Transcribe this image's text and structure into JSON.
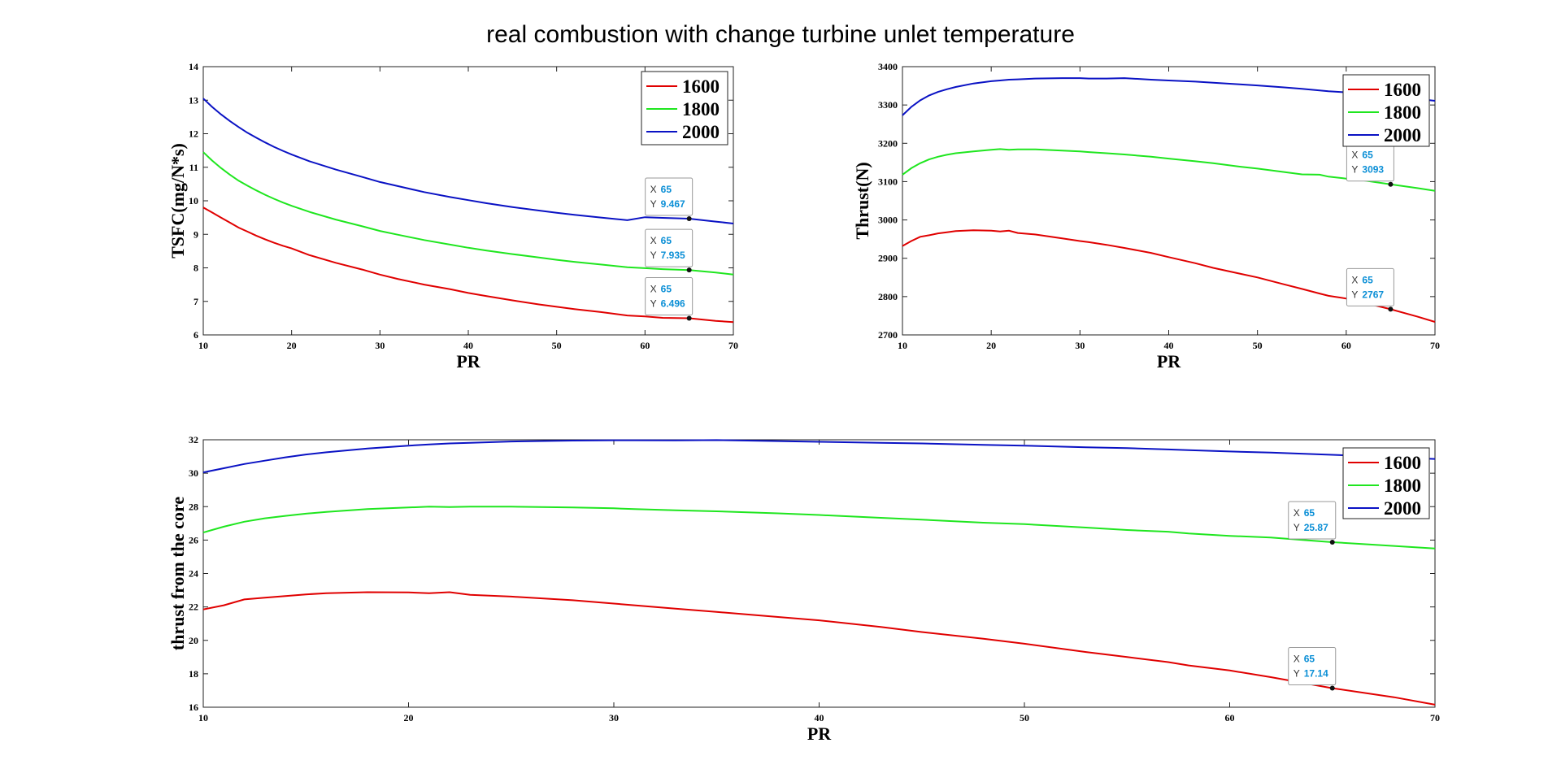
{
  "title": "real combustion with change turbine unlet temperature",
  "colors": {
    "1600": "#e00000",
    "1800": "#1fe61f",
    "2000": "#0a12c4"
  },
  "chart_data": [
    {
      "type": "line",
      "title": "",
      "xlabel": "PR",
      "ylabel": "TSFC(mg/N*s)",
      "xlim": [
        10,
        70
      ],
      "ylim": [
        6,
        14
      ],
      "xticks": [
        10,
        20,
        30,
        40,
        50,
        60,
        70
      ],
      "yticks": [
        6,
        7,
        8,
        9,
        10,
        11,
        12,
        13,
        14
      ],
      "legend_position": "top-right",
      "x": [
        10,
        11,
        12,
        13,
        14,
        15,
        16,
        17,
        18,
        19,
        20,
        22,
        25,
        28,
        30,
        32,
        35,
        38,
        40,
        42,
        45,
        48,
        50,
        52,
        55,
        58,
        60,
        62,
        65,
        68,
        70
      ],
      "series": [
        {
          "name": "1600",
          "values": [
            9.8,
            9.65,
            9.5,
            9.35,
            9.2,
            9.08,
            8.96,
            8.85,
            8.75,
            8.66,
            8.58,
            8.38,
            8.15,
            7.95,
            7.8,
            7.67,
            7.5,
            7.36,
            7.25,
            7.16,
            7.03,
            6.91,
            6.84,
            6.77,
            6.68,
            6.58,
            6.55,
            6.51,
            6.496,
            6.42,
            6.38
          ]
        },
        {
          "name": "1800",
          "values": [
            11.45,
            11.2,
            10.98,
            10.78,
            10.6,
            10.45,
            10.31,
            10.18,
            10.06,
            9.95,
            9.85,
            9.67,
            9.44,
            9.24,
            9.1,
            8.99,
            8.83,
            8.69,
            8.6,
            8.52,
            8.41,
            8.31,
            8.24,
            8.18,
            8.1,
            8.02,
            7.99,
            7.96,
            7.935,
            7.86,
            7.8
          ]
        },
        {
          "name": "2000",
          "values": [
            13.05,
            12.8,
            12.58,
            12.38,
            12.2,
            12.03,
            11.88,
            11.74,
            11.61,
            11.49,
            11.38,
            11.18,
            10.93,
            10.71,
            10.56,
            10.44,
            10.26,
            10.11,
            10.02,
            9.93,
            9.81,
            9.71,
            9.64,
            9.58,
            9.5,
            9.42,
            9.51,
            9.49,
            9.467,
            9.38,
            9.32
          ]
        }
      ],
      "datatips": [
        {
          "x": "65",
          "y": "9.467",
          "series": "2000",
          "xv": 65,
          "yv": 9.467
        },
        {
          "x": "65",
          "y": "7.935",
          "series": "1800",
          "xv": 65,
          "yv": 7.935
        },
        {
          "x": "65",
          "y": "6.496",
          "series": "1600",
          "xv": 65,
          "yv": 6.496
        }
      ]
    },
    {
      "type": "line",
      "title": "",
      "xlabel": "PR",
      "ylabel": "Thrust(N)",
      "xlim": [
        10,
        70
      ],
      "ylim": [
        2700,
        3400
      ],
      "xticks": [
        10,
        20,
        30,
        40,
        50,
        60,
        70
      ],
      "yticks": [
        2700,
        2800,
        2900,
        3000,
        3100,
        3200,
        3300,
        3400
      ],
      "legend_position": "top-right",
      "x": [
        10,
        11,
        12,
        13,
        14,
        15,
        16,
        18,
        20,
        21,
        22,
        23,
        25,
        28,
        30,
        31,
        33,
        35,
        38,
        40,
        43,
        45,
        48,
        50,
        53,
        55,
        57,
        58,
        60,
        62,
        65,
        68,
        70
      ],
      "series": [
        {
          "name": "1600",
          "values": [
            2932,
            2945,
            2956,
            2960,
            2965,
            2968,
            2971,
            2973,
            2972,
            2970,
            2972,
            2966,
            2962,
            2952,
            2945,
            2942,
            2935,
            2927,
            2914,
            2903,
            2887,
            2875,
            2860,
            2850,
            2832,
            2820,
            2808,
            2802,
            2795,
            2784,
            2767,
            2748,
            2734
          ]
        },
        {
          "name": "1800",
          "values": [
            3118,
            3135,
            3148,
            3158,
            3165,
            3170,
            3174,
            3179,
            3183,
            3185,
            3183,
            3184,
            3184,
            3181,
            3179,
            3177,
            3174,
            3171,
            3165,
            3160,
            3153,
            3148,
            3139,
            3134,
            3125,
            3119,
            3118,
            3113,
            3108,
            3103,
            3093,
            3083,
            3076
          ]
        },
        {
          "name": "2000",
          "values": [
            3273,
            3295,
            3312,
            3325,
            3334,
            3341,
            3347,
            3356,
            3362,
            3364,
            3366,
            3367,
            3369,
            3370,
            3370,
            3369,
            3369,
            3370,
            3366,
            3364,
            3361,
            3358,
            3354,
            3351,
            3346,
            3342,
            3338,
            3336,
            3333,
            3329,
            3322,
            3316,
            3311
          ]
        }
      ],
      "datatips": [
        {
          "x": "65",
          "y": "3093",
          "series": "1800",
          "xv": 65,
          "yv": 3093
        },
        {
          "x": "65",
          "y": "2767",
          "series": "1600",
          "xv": 65,
          "yv": 2767
        }
      ]
    },
    {
      "type": "line",
      "title": "",
      "xlabel": "PR",
      "ylabel": "thrust from the core",
      "xlim": [
        10,
        70
      ],
      "ylim": [
        16,
        32
      ],
      "xticks": [
        10,
        20,
        30,
        40,
        50,
        60,
        70
      ],
      "yticks": [
        16,
        18,
        20,
        22,
        24,
        26,
        28,
        30,
        32
      ],
      "legend_position": "top-right",
      "x": [
        10,
        11,
        12,
        13,
        14,
        15,
        16,
        18,
        20,
        21,
        22,
        23,
        25,
        28,
        30,
        31,
        33,
        35,
        38,
        40,
        43,
        45,
        48,
        50,
        53,
        55,
        57,
        58,
        60,
        62,
        65,
        68,
        70
      ],
      "series": [
        {
          "name": "1600",
          "values": [
            21.85,
            22.1,
            22.45,
            22.55,
            22.65,
            22.75,
            22.82,
            22.88,
            22.87,
            22.82,
            22.88,
            22.72,
            22.62,
            22.4,
            22.2,
            22.1,
            21.9,
            21.7,
            21.4,
            21.2,
            20.8,
            20.5,
            20.1,
            19.8,
            19.3,
            19.0,
            18.7,
            18.5,
            18.2,
            17.8,
            17.14,
            16.6,
            16.15
          ]
        },
        {
          "name": "1800",
          "values": [
            26.45,
            26.8,
            27.1,
            27.3,
            27.45,
            27.58,
            27.68,
            27.85,
            27.95,
            28.0,
            27.98,
            28.0,
            28.0,
            27.95,
            27.9,
            27.85,
            27.78,
            27.72,
            27.6,
            27.5,
            27.33,
            27.22,
            27.04,
            26.95,
            26.75,
            26.6,
            26.5,
            26.4,
            26.25,
            26.15,
            25.87,
            25.65,
            25.5
          ]
        },
        {
          "name": "2000",
          "values": [
            30.05,
            30.3,
            30.55,
            30.75,
            30.95,
            31.12,
            31.25,
            31.48,
            31.65,
            31.72,
            31.78,
            31.82,
            31.9,
            31.95,
            31.97,
            31.97,
            31.96,
            31.98,
            31.92,
            31.88,
            31.82,
            31.78,
            31.7,
            31.65,
            31.55,
            31.5,
            31.42,
            31.38,
            31.3,
            31.23,
            31.1,
            30.95,
            30.85
          ]
        }
      ],
      "datatips": [
        {
          "x": "65",
          "y": "25.87",
          "series": "1800",
          "xv": 65,
          "yv": 25.87
        },
        {
          "x": "65",
          "y": "17.14",
          "series": "1600",
          "xv": 65,
          "yv": 17.14
        }
      ]
    }
  ]
}
